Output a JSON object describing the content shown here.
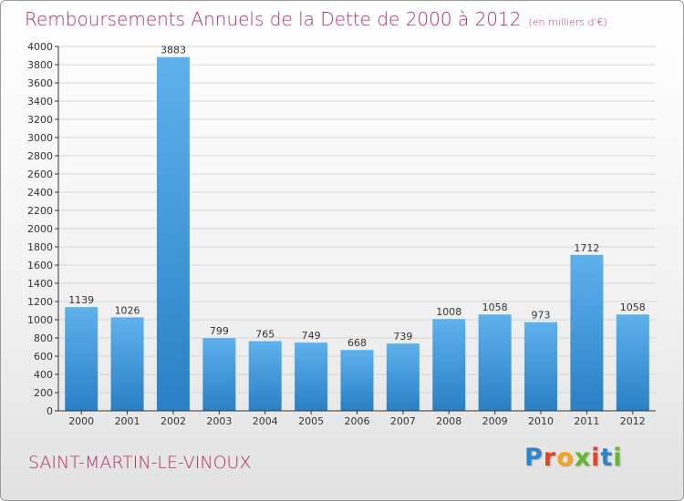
{
  "title": "Remboursements Annuels de la Dette de 2000 à 2012",
  "subtitle": "(en milliers d'€)",
  "commune": "SAINT-MARTIN-LE-VINOUX",
  "logo_text": "Proxiti",
  "colors": {
    "title": "#b0306a",
    "bar_top": "#5fb1ec",
    "bar_bottom": "#2a80c6",
    "logo": [
      "#2e86c8",
      "#e0452a",
      "#f2a51d",
      "#67b82e",
      "#e0452a",
      "#2e86c8",
      "#67b82e"
    ]
  },
  "chart_data": {
    "type": "bar",
    "title": "Remboursements Annuels de la Dette de 2000 à 2012",
    "subtitle": "(en milliers d'€)",
    "categories": [
      "2000",
      "2001",
      "2002",
      "2003",
      "2004",
      "2005",
      "2006",
      "2007",
      "2008",
      "2009",
      "2010",
      "2011",
      "2012"
    ],
    "values": [
      1139,
      1026,
      3883,
      799,
      765,
      749,
      668,
      739,
      1008,
      1058,
      973,
      1712,
      1058
    ],
    "ylim": [
      0,
      4000
    ],
    "yticks": [
      0,
      200,
      400,
      600,
      800,
      1000,
      1200,
      1400,
      1600,
      1800,
      2000,
      2200,
      2400,
      2600,
      2800,
      3000,
      3200,
      3400,
      3600,
      3800,
      4000
    ],
    "grid": true,
    "data_labels": true
  }
}
